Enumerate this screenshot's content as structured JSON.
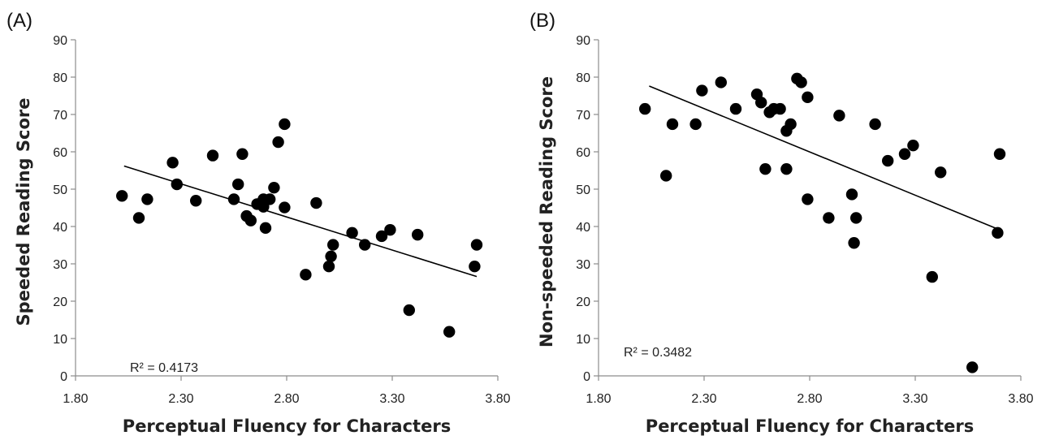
{
  "chart_data": [
    {
      "panel": "(A)",
      "type": "scatter",
      "xlabel": "Perceptual Fluency for Characters",
      "ylabel": "Speeded Reading Score",
      "xlim": [
        1.8,
        3.8
      ],
      "ylim": [
        0,
        90
      ],
      "xticks": [
        "1.80",
        "2.30",
        "2.80",
        "3.30",
        "3.80"
      ],
      "yticks": [
        "0",
        "10",
        "20",
        "30",
        "40",
        "50",
        "60",
        "70",
        "80",
        "90"
      ],
      "grid": false,
      "r_squared": "R² = 0.4173",
      "trendline": {
        "x": [
          2.03,
          3.7
        ],
        "y": [
          56.2,
          26.6
        ]
      },
      "points": [
        {
          "x": 2.02,
          "y": 48.2
        },
        {
          "x": 2.1,
          "y": 42.3
        },
        {
          "x": 2.14,
          "y": 47.3
        },
        {
          "x": 2.26,
          "y": 57.1
        },
        {
          "x": 2.28,
          "y": 51.3
        },
        {
          "x": 2.37,
          "y": 46.9
        },
        {
          "x": 2.45,
          "y": 59.0
        },
        {
          "x": 2.55,
          "y": 47.3
        },
        {
          "x": 2.57,
          "y": 51.3
        },
        {
          "x": 2.59,
          "y": 59.4
        },
        {
          "x": 2.61,
          "y": 42.8
        },
        {
          "x": 2.63,
          "y": 41.6
        },
        {
          "x": 2.66,
          "y": 46.0
        },
        {
          "x": 2.69,
          "y": 47.3
        },
        {
          "x": 2.69,
          "y": 45.3
        },
        {
          "x": 2.7,
          "y": 39.6
        },
        {
          "x": 2.72,
          "y": 47.3
        },
        {
          "x": 2.74,
          "y": 50.4
        },
        {
          "x": 2.76,
          "y": 62.6
        },
        {
          "x": 2.79,
          "y": 67.4
        },
        {
          "x": 2.79,
          "y": 45.1
        },
        {
          "x": 2.89,
          "y": 27.1
        },
        {
          "x": 2.94,
          "y": 46.3
        },
        {
          "x": 3.0,
          "y": 29.3
        },
        {
          "x": 3.01,
          "y": 32.0
        },
        {
          "x": 3.02,
          "y": 35.1
        },
        {
          "x": 3.11,
          "y": 38.3
        },
        {
          "x": 3.17,
          "y": 35.1
        },
        {
          "x": 3.25,
          "y": 37.4
        },
        {
          "x": 3.29,
          "y": 39.1
        },
        {
          "x": 3.38,
          "y": 17.6
        },
        {
          "x": 3.42,
          "y": 37.8
        },
        {
          "x": 3.57,
          "y": 11.8
        },
        {
          "x": 3.69,
          "y": 29.3
        },
        {
          "x": 3.7,
          "y": 35.1
        }
      ]
    },
    {
      "panel": "(B)",
      "type": "scatter",
      "xlabel": "Perceptual Fluency for Characters",
      "ylabel": "Non-speeded Reading Score",
      "xlim": [
        1.8,
        3.8
      ],
      "ylim": [
        0,
        90
      ],
      "xticks": [
        "1.80",
        "2.30",
        "2.80",
        "3.30",
        "3.80"
      ],
      "yticks": [
        "0",
        "10",
        "20",
        "30",
        "40",
        "50",
        "60",
        "70",
        "80",
        "90"
      ],
      "grid": false,
      "r_squared": "R² = 0.3482",
      "trendline": {
        "x": [
          2.04,
          3.7
        ],
        "y": [
          77.6,
          39.1
        ]
      },
      "points": [
        {
          "x": 2.02,
          "y": 71.5
        },
        {
          "x": 2.12,
          "y": 53.6
        },
        {
          "x": 2.15,
          "y": 67.4
        },
        {
          "x": 2.26,
          "y": 67.4
        },
        {
          "x": 2.29,
          "y": 76.4
        },
        {
          "x": 2.38,
          "y": 78.6
        },
        {
          "x": 2.45,
          "y": 71.5
        },
        {
          "x": 2.55,
          "y": 75.4
        },
        {
          "x": 2.57,
          "y": 73.2
        },
        {
          "x": 2.59,
          "y": 55.4
        },
        {
          "x": 2.61,
          "y": 70.6
        },
        {
          "x": 2.63,
          "y": 71.5
        },
        {
          "x": 2.66,
          "y": 71.5
        },
        {
          "x": 2.69,
          "y": 65.6
        },
        {
          "x": 2.69,
          "y": 55.4
        },
        {
          "x": 2.71,
          "y": 67.4
        },
        {
          "x": 2.74,
          "y": 79.6
        },
        {
          "x": 2.76,
          "y": 78.6
        },
        {
          "x": 2.79,
          "y": 74.6
        },
        {
          "x": 2.79,
          "y": 47.3
        },
        {
          "x": 2.89,
          "y": 42.3
        },
        {
          "x": 2.94,
          "y": 69.7
        },
        {
          "x": 3.0,
          "y": 48.6
        },
        {
          "x": 3.01,
          "y": 35.6
        },
        {
          "x": 3.02,
          "y": 42.3
        },
        {
          "x": 3.11,
          "y": 67.4
        },
        {
          "x": 3.17,
          "y": 57.6
        },
        {
          "x": 3.25,
          "y": 59.4
        },
        {
          "x": 3.29,
          "y": 61.7
        },
        {
          "x": 3.38,
          "y": 26.5
        },
        {
          "x": 3.42,
          "y": 54.5
        },
        {
          "x": 3.57,
          "y": 2.3
        },
        {
          "x": 3.69,
          "y": 38.3
        },
        {
          "x": 3.7,
          "y": 59.4
        }
      ]
    }
  ]
}
